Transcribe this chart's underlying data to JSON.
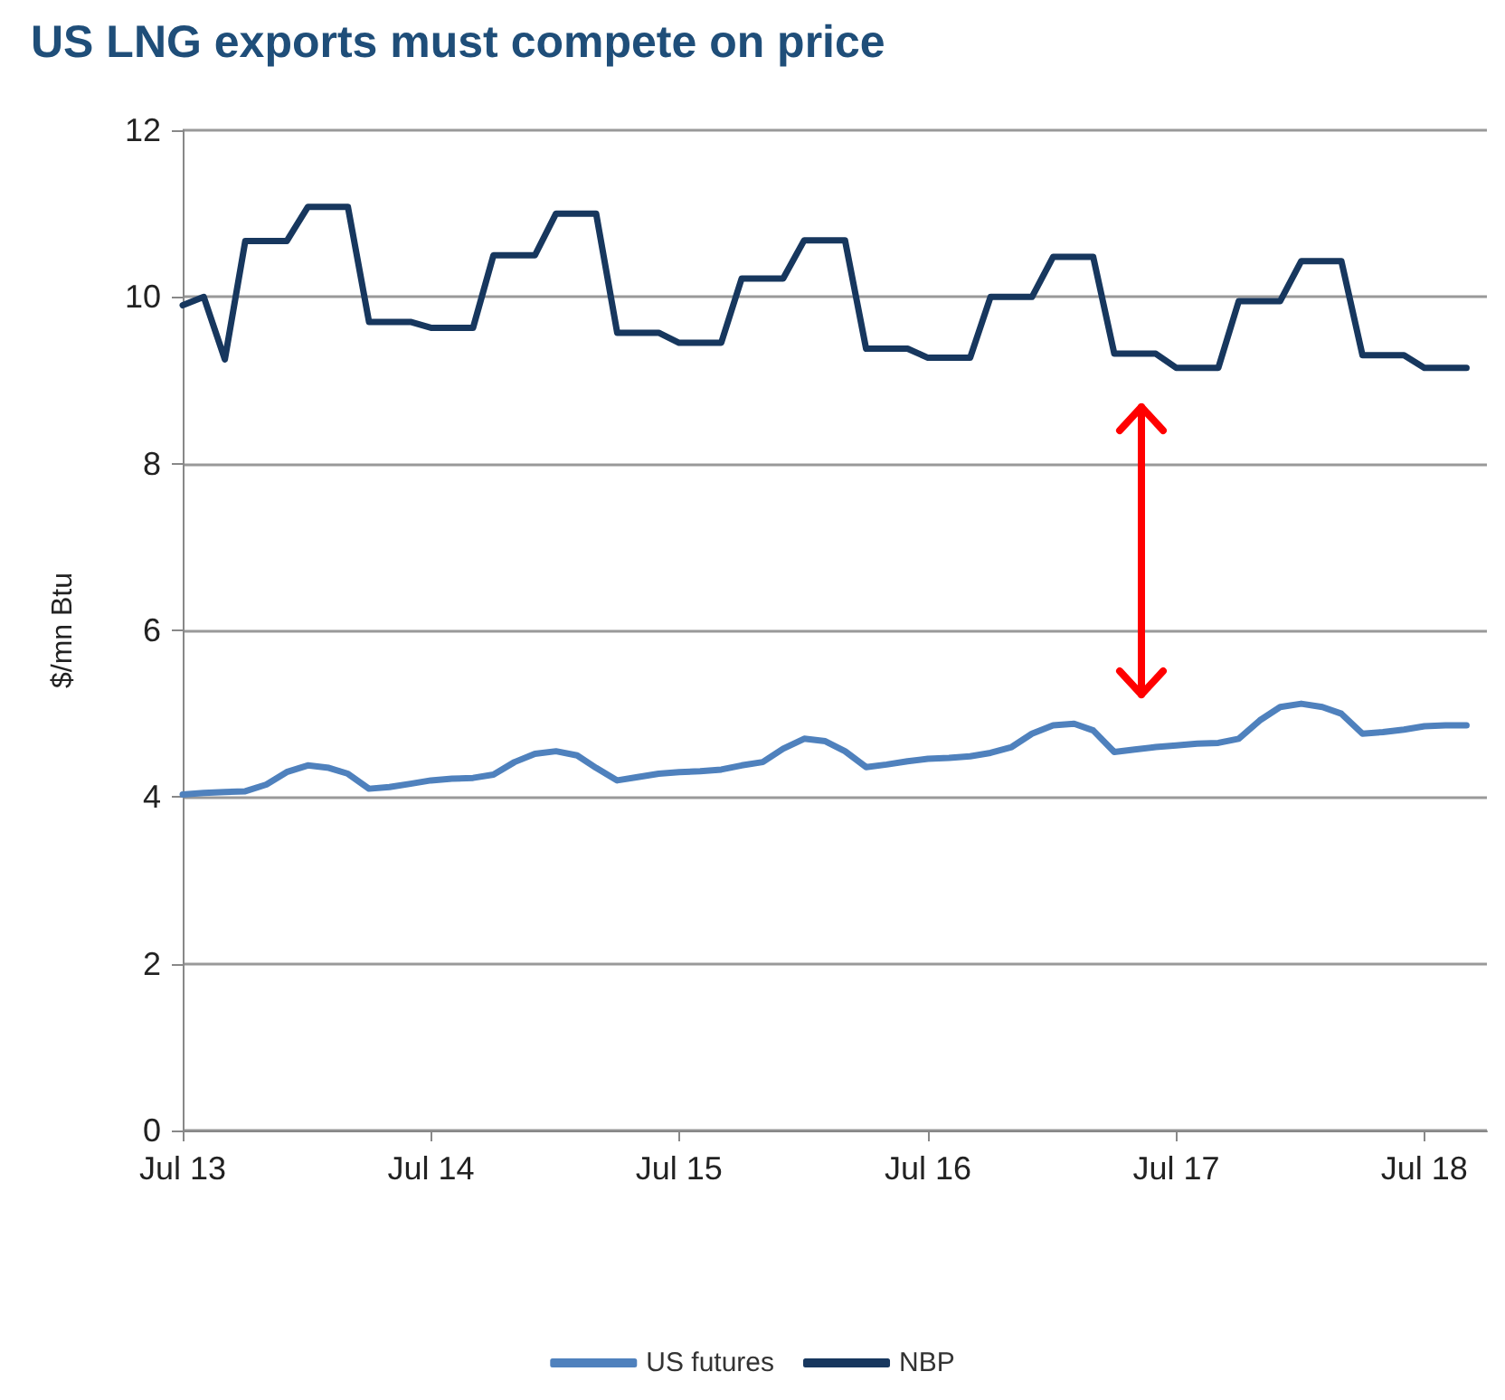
{
  "chart_data": {
    "type": "line",
    "title": "US LNG exports must compete on price",
    "ylabel": "$/mn Btu",
    "x": [
      "2013-07",
      "2013-08",
      "2013-09",
      "2013-10",
      "2013-11",
      "2013-12",
      "2014-01",
      "2014-02",
      "2014-03",
      "2014-04",
      "2014-05",
      "2014-06",
      "2014-07",
      "2014-08",
      "2014-09",
      "2014-10",
      "2014-11",
      "2014-12",
      "2015-01",
      "2015-02",
      "2015-03",
      "2015-04",
      "2015-05",
      "2015-06",
      "2015-07",
      "2015-08",
      "2015-09",
      "2015-10",
      "2015-11",
      "2015-12",
      "2016-01",
      "2016-02",
      "2016-03",
      "2016-04",
      "2016-05",
      "2016-06",
      "2016-07",
      "2016-08",
      "2016-09",
      "2016-10",
      "2016-11",
      "2016-12",
      "2017-01",
      "2017-02",
      "2017-03",
      "2017-04",
      "2017-05",
      "2017-06",
      "2017-07",
      "2017-08",
      "2017-09",
      "2017-10",
      "2017-11",
      "2017-12",
      "2018-01",
      "2018-02",
      "2018-03",
      "2018-04",
      "2018-05",
      "2018-06",
      "2018-07",
      "2018-08",
      "2018-09"
    ],
    "series": [
      {
        "name": "US futures",
        "color": "#4f81bd",
        "values": [
          4.03,
          4.05,
          4.06,
          4.07,
          4.15,
          4.3,
          4.38,
          4.35,
          4.28,
          4.1,
          4.12,
          4.16,
          4.2,
          4.22,
          4.23,
          4.27,
          4.42,
          4.52,
          4.55,
          4.5,
          4.35,
          4.2,
          4.24,
          4.28,
          4.3,
          4.31,
          4.33,
          4.38,
          4.42,
          4.58,
          4.7,
          4.67,
          4.55,
          4.36,
          4.39,
          4.43,
          4.46,
          4.47,
          4.49,
          4.53,
          4.6,
          4.76,
          4.86,
          4.88,
          4.8,
          4.54,
          4.57,
          4.6,
          4.62,
          4.64,
          4.65,
          4.7,
          4.92,
          5.08,
          5.12,
          5.08,
          5.0,
          4.76,
          4.78,
          4.81,
          4.85,
          4.86,
          4.86
        ]
      },
      {
        "name": "NBP",
        "color": "#17375e",
        "values": [
          9.9,
          10.0,
          9.25,
          10.67,
          10.67,
          10.67,
          11.08,
          11.08,
          11.08,
          9.7,
          9.7,
          9.7,
          9.63,
          9.63,
          9.63,
          10.5,
          10.5,
          10.5,
          11.0,
          11.0,
          11.0,
          9.57,
          9.57,
          9.57,
          9.45,
          9.45,
          9.45,
          10.22,
          10.22,
          10.22,
          10.68,
          10.68,
          10.68,
          9.38,
          9.38,
          9.38,
          9.27,
          9.27,
          9.27,
          10.0,
          10.0,
          10.0,
          10.48,
          10.48,
          10.48,
          9.32,
          9.32,
          9.32,
          9.15,
          9.15,
          9.15,
          9.95,
          9.95,
          9.95,
          10.43,
          10.43,
          10.43,
          9.3,
          9.3,
          9.3,
          9.15,
          9.15,
          9.15
        ]
      }
    ],
    "xlim": [
      "2013-07",
      "2018-10"
    ],
    "xticks": [
      {
        "value": "2013-07",
        "label": "Jul 13"
      },
      {
        "value": "2014-07",
        "label": "Jul 14"
      },
      {
        "value": "2015-07",
        "label": "Jul 15"
      },
      {
        "value": "2016-07",
        "label": "Jul 16"
      },
      {
        "value": "2017-07",
        "label": "Jul 17"
      },
      {
        "value": "2018-07",
        "label": "Jul 18"
      }
    ],
    "ylim": [
      0,
      12
    ],
    "yticks": [
      0,
      2,
      4,
      6,
      8,
      10,
      12
    ],
    "grid": "y",
    "legend": "bottom",
    "marker": "none",
    "line_style": "solid"
  }
}
